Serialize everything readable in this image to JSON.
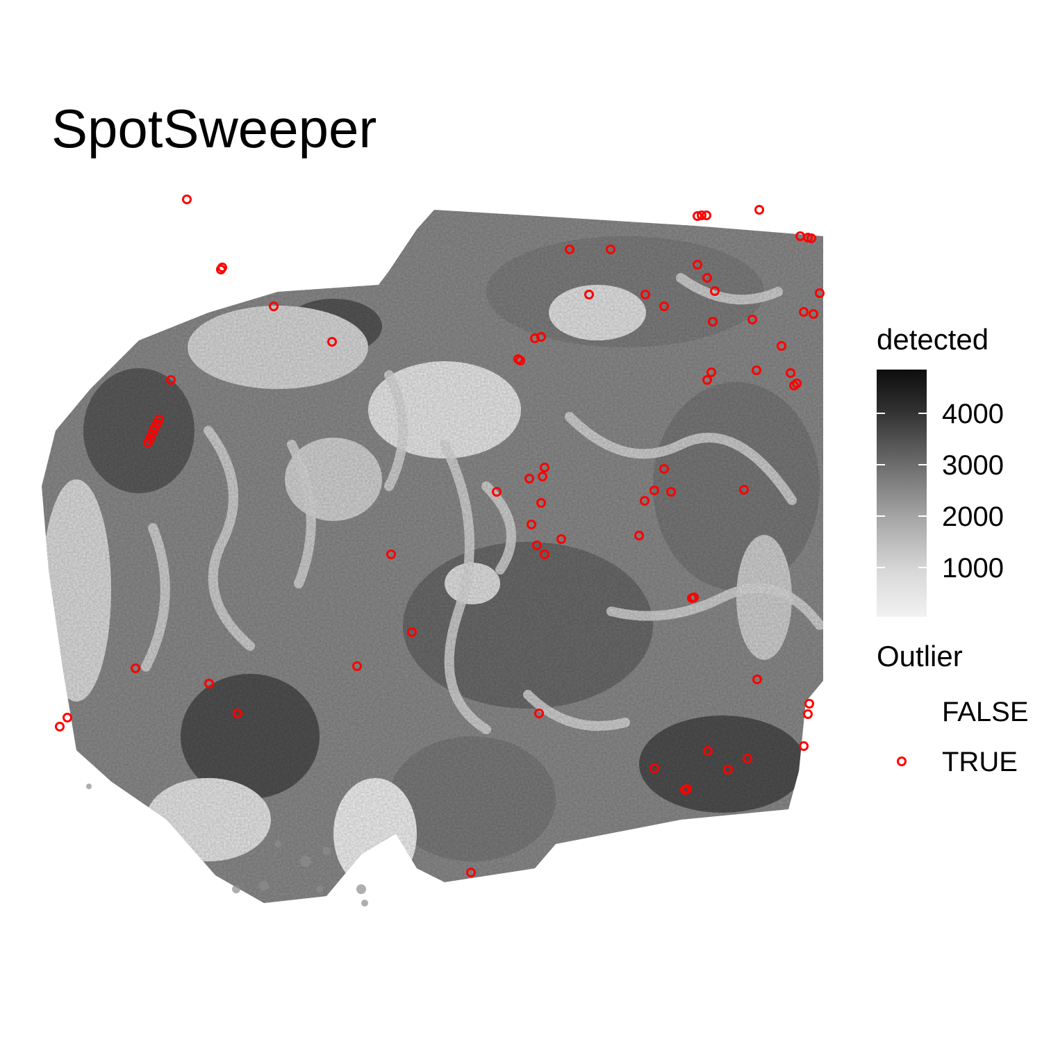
{
  "chart_data": {
    "type": "scatter",
    "title": "SpotSweeper",
    "xlabel": "",
    "ylabel": "",
    "axes_visible": false,
    "background": "tissue spot map, greyscale by detected",
    "fill_legend": {
      "title": "detected",
      "ticks": [
        "4000",
        "3000",
        "2000",
        "1000"
      ],
      "range": [
        200,
        4800
      ],
      "low_color": "#f2f2f2",
      "high_color": "#0d0d0d"
    },
    "outlier_legend": {
      "title": "Outlier",
      "entries": [
        {
          "label": "FALSE",
          "color": ""
        },
        {
          "label": "TRUE",
          "color": "#ff0000"
        }
      ]
    },
    "outlier_points": [
      [
        269,
        287
      ],
      [
        320,
        385
      ],
      [
        318,
        388
      ],
      [
        1004,
        311
      ],
      [
        1010,
        310
      ],
      [
        1017,
        310
      ],
      [
        1093,
        302
      ],
      [
        1152,
        340
      ],
      [
        1168,
        343
      ],
      [
        1163,
        342
      ],
      [
        820,
        359
      ],
      [
        879,
        359
      ],
      [
        1004,
        381
      ],
      [
        1018,
        400
      ],
      [
        1029,
        419
      ],
      [
        848,
        424
      ],
      [
        929,
        424
      ],
      [
        956,
        441
      ],
      [
        1180,
        422
      ],
      [
        394,
        441
      ],
      [
        1026,
        463
      ],
      [
        1083,
        460
      ],
      [
        1157,
        449
      ],
      [
        1171,
        452
      ],
      [
        478,
        492
      ],
      [
        770,
        487
      ],
      [
        779,
        485
      ],
      [
        1125,
        498
      ],
      [
        749,
        519
      ],
      [
        746,
        517
      ],
      [
        246,
        547
      ],
      [
        1024,
        536
      ],
      [
        1018,
        547
      ],
      [
        1089,
        533
      ],
      [
        1138,
        537
      ],
      [
        1143,
        555
      ],
      [
        1147,
        552
      ],
      [
        229,
        604
      ],
      [
        226,
        610
      ],
      [
        222,
        617
      ],
      [
        219,
        624
      ],
      [
        216,
        631
      ],
      [
        213,
        637
      ],
      [
        784,
        673
      ],
      [
        762,
        689
      ],
      [
        781,
        686
      ],
      [
        956,
        675
      ],
      [
        715,
        708
      ],
      [
        942,
        706
      ],
      [
        966,
        708
      ],
      [
        1071,
        705
      ],
      [
        928,
        721
      ],
      [
        779,
        724
      ],
      [
        765,
        755
      ],
      [
        808,
        776
      ],
      [
        920,
        771
      ],
      [
        773,
        785
      ],
      [
        784,
        798
      ],
      [
        563,
        798
      ],
      [
        996,
        861
      ],
      [
        999,
        860
      ],
      [
        593,
        910
      ],
      [
        195,
        962
      ],
      [
        514,
        959
      ],
      [
        1090,
        978
      ],
      [
        301,
        984
      ],
      [
        342,
        1027
      ],
      [
        776,
        1027
      ],
      [
        1165,
        1013
      ],
      [
        1163,
        1028
      ],
      [
        97,
        1033
      ],
      [
        86,
        1046
      ],
      [
        1157,
        1074
      ],
      [
        1019,
        1081
      ],
      [
        1076,
        1092
      ],
      [
        942,
        1106
      ],
      [
        1048,
        1108
      ],
      [
        986,
        1137
      ],
      [
        989,
        1136
      ],
      [
        678,
        1256
      ]
    ]
  }
}
